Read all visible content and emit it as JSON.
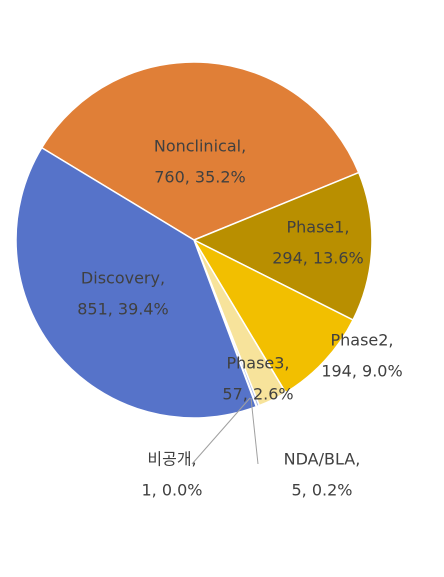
{
  "chart_data": {
    "type": "pie",
    "categories": [
      "Nonclinical,",
      "Phase1,",
      "Phase2,",
      "Phase3,",
      "NDA/BLA,",
      "비공개,",
      "Discovery,"
    ],
    "values": [
      760,
      294,
      194,
      57,
      5,
      1,
      851
    ],
    "value_labels": [
      "760, 35.2%",
      "294, 13.6%",
      "194, 9.0%",
      "57, 2.6%",
      "5, 0.2%",
      "1, 0.0%",
      "851, 39.4%"
    ],
    "colors": [
      "#e07f37",
      "#b98f00",
      "#f2bf00",
      "#f7e39b",
      "#a9b9e6",
      "#c9c9c9",
      "#5673c9"
    ]
  }
}
